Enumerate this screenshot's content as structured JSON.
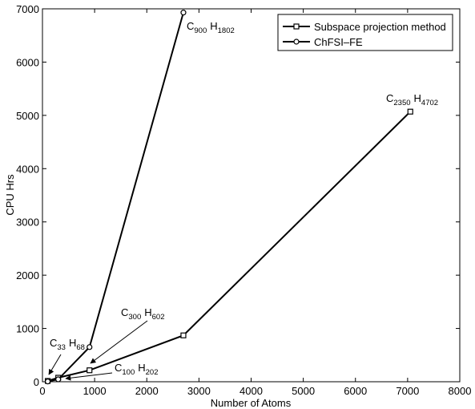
{
  "chart_data": {
    "type": "line",
    "title": "",
    "xlabel": "Number of Atoms",
    "ylabel": "CPU Hrs",
    "xlim": [
      0,
      8000
    ],
    "ylim": [
      0,
      7000
    ],
    "xticks": [
      0,
      1000,
      2000,
      3000,
      4000,
      5000,
      6000,
      7000,
      8000
    ],
    "yticks": [
      0,
      1000,
      2000,
      3000,
      4000,
      5000,
      6000,
      7000
    ],
    "grid": false,
    "legend_position": "top-right",
    "series": [
      {
        "name": "Subspace projection method",
        "marker": "square",
        "x": [
          101,
          302,
          902,
          2702,
          7052
        ],
        "y": [
          15,
          75,
          215,
          870,
          5070
        ]
      },
      {
        "name": "ChFSI–FE",
        "marker": "circle",
        "x": [
          101,
          302,
          902,
          2702
        ],
        "y": [
          5,
          45,
          650,
          6930
        ]
      }
    ],
    "annotations": [
      {
        "id": "c33",
        "element1": "C",
        "sub1": "33",
        "element2": "H",
        "sub2": "68"
      },
      {
        "id": "c100",
        "element1": "C",
        "sub1": "100",
        "element2": "H",
        "sub2": "202"
      },
      {
        "id": "c300",
        "element1": "C",
        "sub1": "300",
        "element2": "H",
        "sub2": "602"
      },
      {
        "id": "c900",
        "element1": "C",
        "sub1": "900",
        "element2": "H",
        "sub2": "1802"
      },
      {
        "id": "c2350",
        "element1": "C",
        "sub1": "2350",
        "element2": "H",
        "sub2": "4702"
      }
    ]
  }
}
